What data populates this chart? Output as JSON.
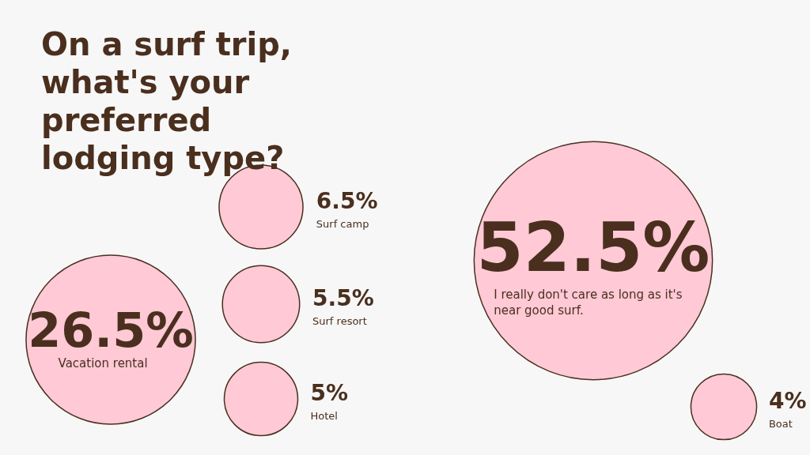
{
  "chart_data": {
    "type": "other",
    "title": "On a surf trip, what's your preferred lodging type?",
    "categories": [
      "I really don't care as long as it's near good surf.",
      "Vacation rental",
      "Surf camp",
      "Surf resort",
      "Hotel",
      "Boat"
    ],
    "values": [
      52.5,
      26.5,
      6.5,
      5.5,
      5,
      4
    ],
    "value_labels": [
      "52.5%",
      "26.5%",
      "6.5%",
      "5.5%",
      "5%",
      "4%"
    ],
    "color": "#ffc9d6"
  }
}
